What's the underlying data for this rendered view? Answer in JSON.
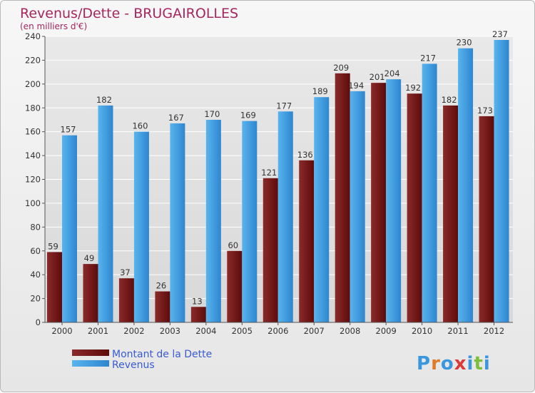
{
  "chart_data": {
    "type": "bar",
    "title": "Revenus/Dette - BRUGAIROLLES",
    "subtitle": "(en milliers d'€)",
    "categories": [
      "2000",
      "2001",
      "2002",
      "2003",
      "2004",
      "2005",
      "2006",
      "2007",
      "2008",
      "2009",
      "2010",
      "2011",
      "2012"
    ],
    "series": [
      {
        "name": "Montant de la Dette",
        "values": [
          59,
          49,
          37,
          26,
          13,
          60,
          121,
          136,
          209,
          201,
          192,
          182,
          173
        ],
        "color": "#7a1a1a"
      },
      {
        "name": "Revenus",
        "values": [
          157,
          182,
          160,
          167,
          170,
          169,
          177,
          189,
          194,
          204,
          217,
          230,
          237
        ],
        "color": "#3a96dd"
      }
    ],
    "yticks": [
      0,
      20,
      40,
      60,
      80,
      100,
      120,
      140,
      160,
      180,
      200,
      220,
      240
    ],
    "ylim": [
      0,
      240
    ],
    "grid": true,
    "legend_position": "bottom-left"
  },
  "colors": {
    "title": "#a6265e",
    "legend_text": "#3a5bd1",
    "axis_text": "#333333",
    "grid": "#ffffff"
  },
  "logo": {
    "text": "Proxiti"
  }
}
